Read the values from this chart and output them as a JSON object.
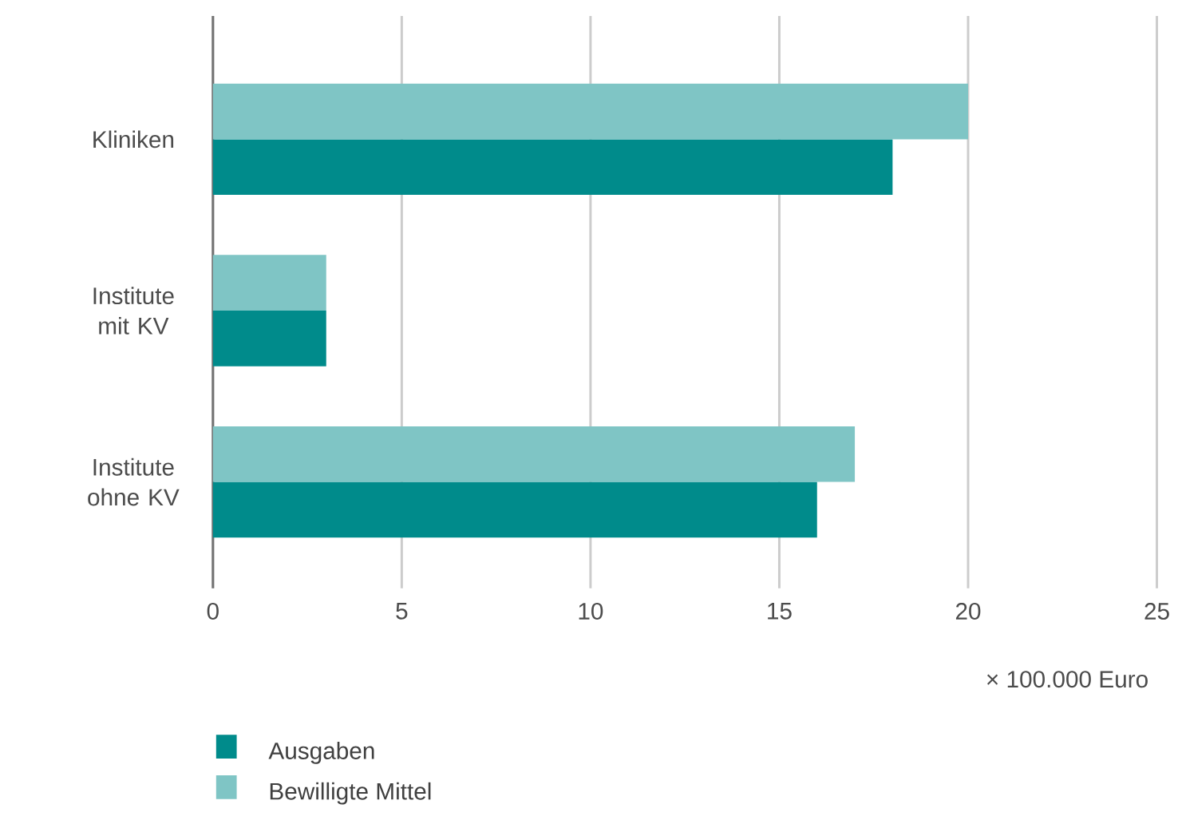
{
  "chart_data": {
    "type": "bar",
    "orientation": "horizontal",
    "categories": [
      "Kliniken",
      "Institute mit KV",
      "Institute ohne KV"
    ],
    "series": [
      {
        "name": "Ausgaben",
        "color": "#008b8b",
        "values": [
          18,
          3,
          16
        ]
      },
      {
        "name": "Bewilligte Mittel",
        "color": "#7fc5c5",
        "values": [
          20,
          3,
          17
        ]
      }
    ],
    "xlabel": "× 100.000 Euro",
    "xlim": [
      0,
      25
    ],
    "xticks": [
      0,
      5,
      10,
      15,
      20,
      25
    ],
    "grid": "x",
    "legend": "bottom"
  }
}
